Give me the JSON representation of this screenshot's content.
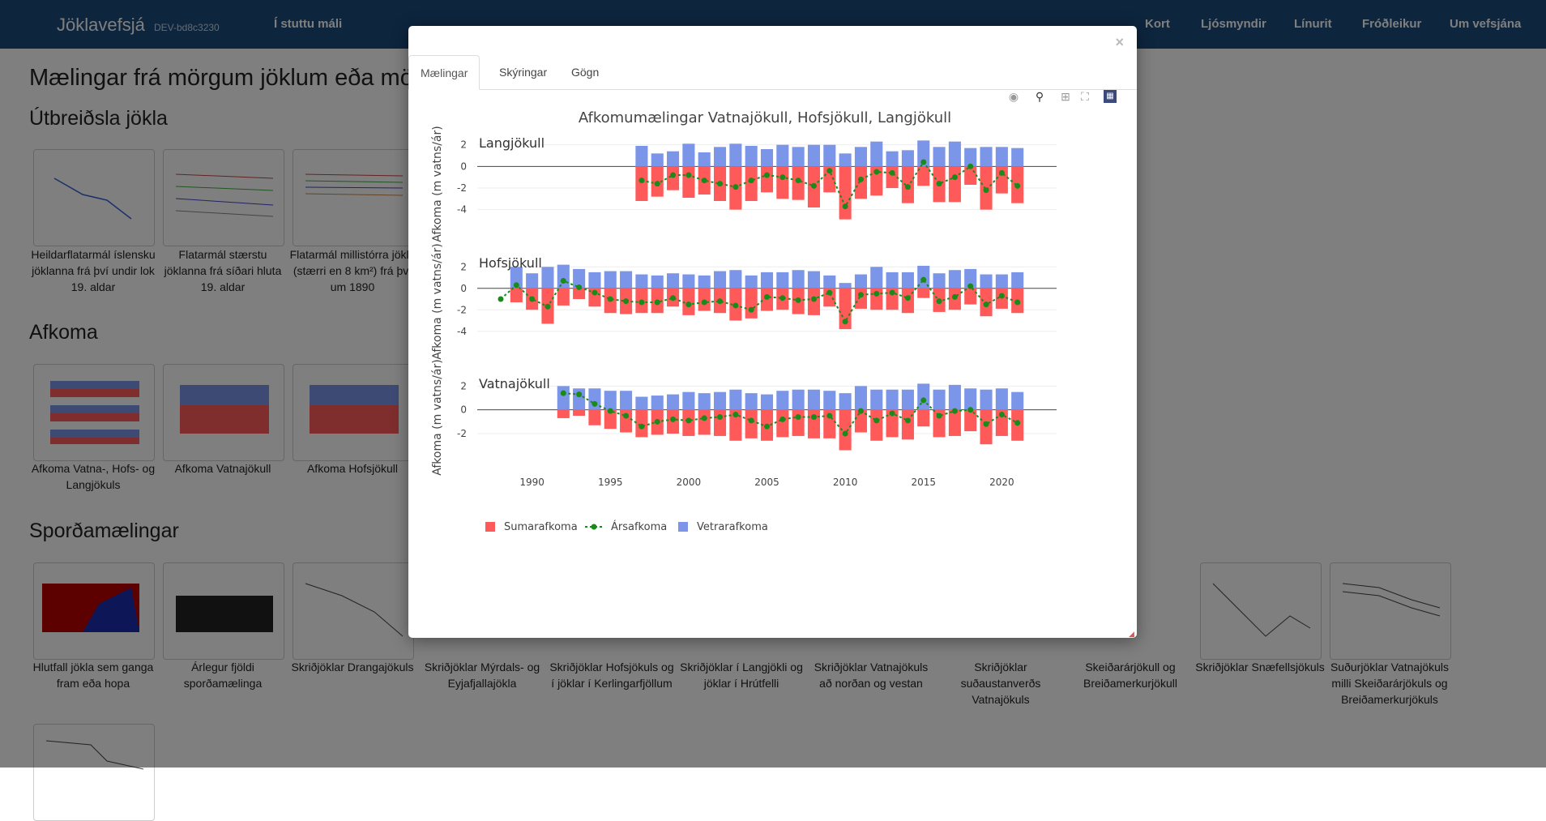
{
  "nav": {
    "brand": "Jöklavefsjá",
    "dev": "DEV-bd8c3230",
    "short": "Í stuttu máli",
    "links": [
      "Kort",
      "Ljósmyndir",
      "Línurit",
      "Fróðleikur",
      "Um vefsjána"
    ]
  },
  "page": {
    "title": "Mælingar frá mörgum jöklum eða mörgum",
    "sections": [
      "Útbreiðsla jökla",
      "Afkoma",
      "Sporðamælingar"
    ],
    "extent_captions": [
      "Heildarflatarmál íslensku jöklanna frá því undir lok 19. aldar",
      "Flatarmál stærstu jöklanna frá síðari hluta 19. aldar",
      "Flatarmál millistórra jökla (stærri en 8 km²) frá því um 1890"
    ],
    "mass_captions": [
      "Afkoma Vatna-, Hofs- og Langjökuls",
      "Afkoma Vatnajökull",
      "Afkoma Hofsjökull"
    ],
    "terminus_captions": [
      "Hlutfall jökla sem ganga fram eða hopa",
      "Árlegur fjöldi sporðamælinga",
      "Skriðjöklar Drangajökuls",
      "Skriðjöklar Mýrdals- og Eyjafjallajökla",
      "Skriðjöklar Hofsjökuls og í jöklar í Kerlingarfjöllum",
      "Skriðjöklar í Langjökli og jöklar í Hrútfelli",
      "Skriðjöklar Vatnajökuls að norðan og vestan",
      "Skriðjöklar suðaustanverðs Vatnajökuls",
      "Skeiðarárjökull og Breiðamerkurjökull",
      "Skriðjöklar Snæfellsjökuls",
      "Suðurjöklar Vatnajökuls milli Skeiðarárjökuls og Breiðamerkurjökuls"
    ]
  },
  "modal": {
    "close": "×",
    "tabs": [
      "Mælingar",
      "Skýringar",
      "Gögn"
    ],
    "icons": [
      "camera-icon",
      "zoom-icon",
      "zoom-in-icon",
      "autoscale-icon",
      "plotly-logo-icon"
    ]
  },
  "chart_data": {
    "type": "bar",
    "title": "Afkomumælingar Vatnajökull, Hofsjökull, Langjökull",
    "ylabel": "Afkoma (m vatns/ár)",
    "x_ticks": [
      1990,
      1995,
      2000,
      2005,
      2010,
      2015,
      2020
    ],
    "legend": [
      "Sumarafkoma",
      "Ársafkoma",
      "Vetrarafkoma"
    ],
    "colors": {
      "summer": "#ff5a5a",
      "annual": "#1a8a1a",
      "winter": "#7b95e8"
    },
    "panels": [
      {
        "name": "Langjökull",
        "ylim": [
          -5,
          2.5
        ],
        "yticks": [
          2,
          0,
          -2,
          -4
        ],
        "years": [
          1997,
          1998,
          1999,
          2000,
          2001,
          2002,
          2003,
          2004,
          2005,
          2006,
          2007,
          2008,
          2009,
          2010,
          2011,
          2012,
          2013,
          2014,
          2015,
          2016,
          2017,
          2018,
          2019,
          2020,
          2021
        ],
        "winter": [
          1.9,
          1.2,
          1.4,
          2.1,
          1.3,
          1.8,
          2.1,
          1.9,
          1.6,
          2.0,
          1.8,
          2.0,
          2.0,
          1.2,
          1.8,
          2.3,
          1.4,
          1.5,
          2.4,
          1.8,
          2.3,
          1.7,
          1.8,
          1.8,
          1.7
        ],
        "summer": [
          -3.2,
          -2.8,
          -2.2,
          -2.9,
          -2.6,
          -3.2,
          -4.0,
          -3.2,
          -2.4,
          -3.0,
          -3.1,
          -3.8,
          -2.4,
          -4.9,
          -3.0,
          -2.7,
          -2.0,
          -3.4,
          -1.8,
          -3.3,
          -3.3,
          -1.7,
          -4.0,
          -2.5,
          -3.4
        ],
        "annual": [
          -1.3,
          -1.6,
          -0.8,
          -0.8,
          -1.3,
          -1.6,
          -1.9,
          -1.3,
          -0.8,
          -1.0,
          -1.3,
          -1.8,
          -0.4,
          -3.7,
          -1.2,
          -0.5,
          -0.6,
          -1.9,
          0.4,
          -1.6,
          -1.0,
          0.0,
          -2.2,
          -0.6,
          -1.8
        ]
      },
      {
        "name": "Hofsjökull",
        "ylim": [
          -5,
          2.7
        ],
        "yticks": [
          2,
          0,
          -2,
          -4
        ],
        "years": [
          1988,
          1989,
          1990,
          1991,
          1992,
          1993,
          1994,
          1995,
          1996,
          1997,
          1998,
          1999,
          2000,
          2001,
          2002,
          2003,
          2004,
          2005,
          2006,
          2007,
          2008,
          2009,
          2010,
          2011,
          2012,
          2013,
          2014,
          2015,
          2016,
          2017,
          2018,
          2019,
          2020,
          2021
        ],
        "winter": [
          0.0,
          2.0,
          1.4,
          2.0,
          2.2,
          1.8,
          1.5,
          1.6,
          1.6,
          1.3,
          1.2,
          1.4,
          1.3,
          1.2,
          1.6,
          1.7,
          1.2,
          1.5,
          1.5,
          1.7,
          1.6,
          1.2,
          0.5,
          1.3,
          2.0,
          1.5,
          1.5,
          2.1,
          1.4,
          1.7,
          1.8,
          1.3,
          1.3,
          1.5
        ],
        "summer": [
          0.0,
          -1.3,
          -2.0,
          -3.3,
          -1.6,
          -1.0,
          -1.7,
          -2.3,
          -2.4,
          -2.3,
          -2.3,
          -1.7,
          -2.5,
          -2.1,
          -2.3,
          -3.0,
          -2.8,
          -2.1,
          -2.0,
          -2.4,
          -2.5,
          -1.7,
          -3.8,
          -1.9,
          -2.0,
          -2.0,
          -2.3,
          -0.9,
          -2.2,
          -2.0,
          -1.5,
          -2.6,
          -1.9,
          -2.3
        ],
        "annual": [
          -1.0,
          0.3,
          -1.0,
          -1.7,
          0.7,
          0.1,
          -0.4,
          -1.0,
          -1.2,
          -1.3,
          -1.3,
          -0.9,
          -1.5,
          -1.3,
          -1.2,
          -1.6,
          -2.0,
          -0.8,
          -0.9,
          -1.1,
          -1.0,
          -0.4,
          -3.1,
          -0.6,
          -0.5,
          -0.4,
          -0.9,
          0.8,
          -1.2,
          -0.8,
          0.2,
          -1.5,
          -0.7,
          -1.3
        ]
      },
      {
        "name": "Vatnajökull",
        "ylim": [
          -3.5,
          2.5
        ],
        "yticks": [
          2,
          0,
          -2
        ],
        "years": [
          1992,
          1993,
          1994,
          1995,
          1996,
          1997,
          1998,
          1999,
          2000,
          2001,
          2002,
          2003,
          2004,
          2005,
          2006,
          2007,
          2008,
          2009,
          2010,
          2011,
          2012,
          2013,
          2014,
          2015,
          2016,
          2017,
          2018,
          2019,
          2020,
          2021
        ],
        "winter": [
          2.0,
          1.8,
          1.8,
          1.6,
          1.6,
          1.1,
          1.2,
          1.3,
          1.5,
          1.4,
          1.5,
          1.7,
          1.4,
          1.3,
          1.6,
          1.7,
          1.7,
          1.6,
          1.4,
          2.0,
          1.7,
          1.7,
          1.7,
          2.2,
          1.7,
          2.1,
          1.8,
          1.7,
          1.8,
          1.5
        ],
        "summer": [
          -0.7,
          -0.5,
          -1.3,
          -1.6,
          -1.9,
          -2.3,
          -2.1,
          -2.0,
          -2.2,
          -2.1,
          -2.2,
          -2.6,
          -2.4,
          -2.6,
          -2.3,
          -2.2,
          -2.4,
          -2.4,
          -3.4,
          -1.9,
          -2.6,
          -2.3,
          -2.5,
          -1.4,
          -2.3,
          -2.2,
          -1.8,
          -2.9,
          -2.2,
          -2.6
        ],
        "annual": [
          1.4,
          1.3,
          0.5,
          -0.1,
          -0.5,
          -1.4,
          -1.0,
          -0.8,
          -0.9,
          -0.7,
          -0.6,
          -0.4,
          -0.9,
          -1.4,
          -0.8,
          -0.6,
          -0.6,
          -0.5,
          -2.0,
          -0.1,
          -0.9,
          -0.3,
          -0.9,
          0.8,
          -0.5,
          -0.1,
          0.0,
          -1.2,
          -0.4,
          -1.1
        ]
      }
    ]
  }
}
